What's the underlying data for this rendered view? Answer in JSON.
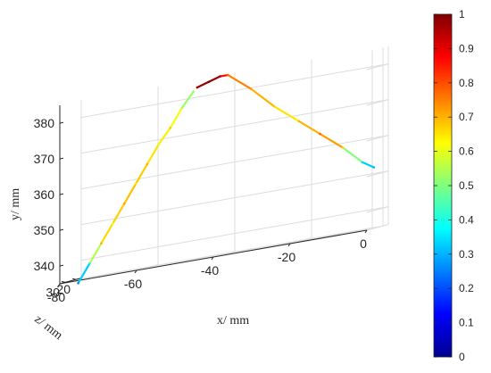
{
  "chart_data": {
    "type": "line",
    "view": "3d",
    "title": "",
    "axes": {
      "x": {
        "label": "x/ mm",
        "ticks": [
          "-80",
          "-60",
          "-40",
          "-20",
          "0"
        ],
        "range": [
          -80,
          0
        ]
      },
      "y": {
        "label": "y/ mm",
        "ticks": [
          "340",
          "350",
          "360",
          "370",
          "380"
        ],
        "range": [
          335,
          385
        ]
      },
      "z": {
        "label": "z/ mm",
        "ticks": [
          "30",
          "20"
        ],
        "range": [
          15,
          35
        ]
      }
    },
    "grid": true,
    "colormap": "jet",
    "colorbar": {
      "range": [
        0,
        1
      ],
      "ticks": [
        "0",
        "0.1",
        "0.2",
        "0.3",
        "0.4",
        "0.5",
        "0.6",
        "0.7",
        "0.8",
        "0.9",
        "1"
      ]
    },
    "series": [
      {
        "points": [
          {
            "x": -78,
            "y": 334,
            "z": 25,
            "c": 0.25
          },
          {
            "x": -75,
            "y": 339,
            "z": 25,
            "c": 0.4
          },
          {
            "x": -72,
            "y": 344,
            "z": 25,
            "c": 0.7
          },
          {
            "x": -69,
            "y": 349,
            "z": 25,
            "c": 0.62
          },
          {
            "x": -66,
            "y": 354,
            "z": 25,
            "c": 0.72
          },
          {
            "x": -63,
            "y": 359,
            "z": 25,
            "c": 0.65
          },
          {
            "x": -60,
            "y": 364,
            "z": 25,
            "c": 0.7
          },
          {
            "x": -57,
            "y": 369,
            "z": 25,
            "c": 0.6
          },
          {
            "x": -54,
            "y": 373,
            "z": 25,
            "c": 0.68
          },
          {
            "x": -51,
            "y": 378,
            "z": 25,
            "c": 0.55
          },
          {
            "x": -48,
            "y": 382,
            "z": 25,
            "c": 0.5
          },
          {
            "x": -47,
            "y": 383,
            "z": 25,
            "c": 0.95
          },
          {
            "x": -44,
            "y": 384,
            "z": 25,
            "c": 1.0
          },
          {
            "x": -41,
            "y": 385,
            "z": 25,
            "c": 0.95
          },
          {
            "x": -39,
            "y": 385,
            "z": 25,
            "c": 0.78
          },
          {
            "x": -33,
            "y": 380,
            "z": 25,
            "c": 0.72
          },
          {
            "x": -27,
            "y": 374,
            "z": 25,
            "c": 0.68
          },
          {
            "x": -21,
            "y": 369,
            "z": 25,
            "c": 0.62
          },
          {
            "x": -15,
            "y": 364,
            "z": 25,
            "c": 0.78
          },
          {
            "x": -9,
            "y": 359,
            "z": 25,
            "c": 0.66
          },
          {
            "x": -4,
            "y": 354,
            "z": 25,
            "c": 0.35
          },
          {
            "x": -1,
            "y": 352,
            "z": 25,
            "c": 0.3
          }
        ]
      }
    ]
  }
}
